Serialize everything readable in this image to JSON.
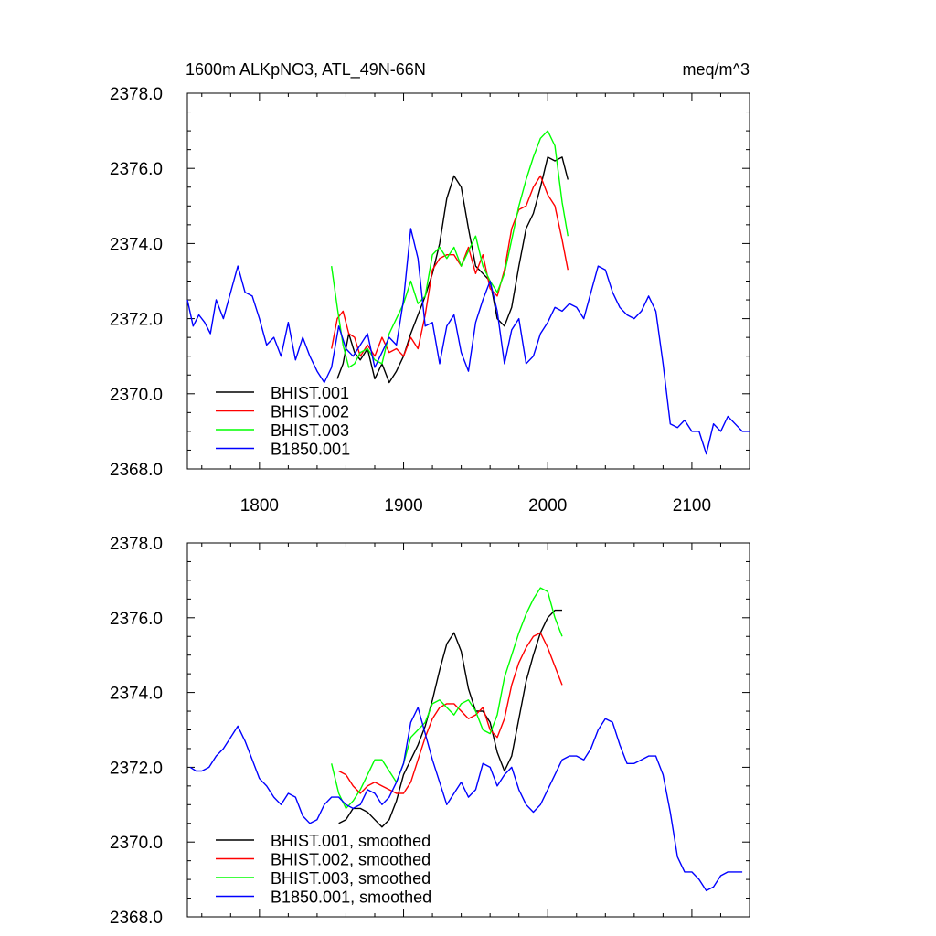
{
  "header": {
    "title_left": "1600m ALKpNO3, ATL_49N-66N",
    "title_right": "meq/m^3"
  },
  "chart_data": [
    {
      "type": "line",
      "panel": "raw",
      "xlim": [
        1750,
        2140
      ],
      "ylim": [
        2368.0,
        2378.0
      ],
      "xticks": [
        1800,
        1900,
        2000,
        2100
      ],
      "xtick_labels": [
        "1800",
        "1900",
        "2000",
        "2100"
      ],
      "yticks": [
        2368.0,
        2370.0,
        2372.0,
        2374.0,
        2376.0,
        2378.0
      ],
      "ytick_labels": [
        "2368.0",
        "2370.0",
        "2372.0",
        "2374.0",
        "2376.0",
        "2378.0"
      ],
      "legend_position": "bottom-left",
      "series": [
        {
          "name": "BHIST.001",
          "color": "#000000",
          "x": [
            1854,
            1858,
            1862,
            1866,
            1870,
            1875,
            1880,
            1885,
            1890,
            1895,
            1900,
            1905,
            1910,
            1915,
            1920,
            1925,
            1930,
            1935,
            1940,
            1945,
            1950,
            1955,
            1960,
            1965,
            1970,
            1975,
            1980,
            1985,
            1990,
            1995,
            2000,
            2005,
            2010,
            2014
          ],
          "y": [
            2370.4,
            2370.8,
            2371.6,
            2371.1,
            2370.9,
            2371.2,
            2370.4,
            2370.8,
            2370.3,
            2370.6,
            2371.0,
            2371.6,
            2372.1,
            2372.6,
            2373.2,
            2374.0,
            2375.2,
            2375.8,
            2375.5,
            2374.4,
            2373.4,
            2373.2,
            2373.0,
            2372.0,
            2371.8,
            2372.3,
            2373.4,
            2374.4,
            2374.8,
            2375.5,
            2376.3,
            2376.2,
            2376.3,
            2375.7
          ]
        },
        {
          "name": "BHIST.002",
          "color": "#ff0000",
          "x": [
            1850,
            1854,
            1858,
            1862,
            1866,
            1870,
            1875,
            1880,
            1885,
            1890,
            1895,
            1900,
            1905,
            1910,
            1915,
            1920,
            1925,
            1930,
            1935,
            1940,
            1945,
            1950,
            1955,
            1960,
            1965,
            1970,
            1975,
            1980,
            1985,
            1990,
            1995,
            2000,
            2005,
            2010,
            2014
          ],
          "y": [
            2371.2,
            2372.0,
            2372.2,
            2371.6,
            2371.5,
            2371.0,
            2371.3,
            2371.0,
            2371.5,
            2371.1,
            2371.2,
            2371.0,
            2371.5,
            2371.2,
            2372.1,
            2373.3,
            2373.6,
            2373.7,
            2373.7,
            2373.4,
            2373.9,
            2373.2,
            2373.7,
            2372.8,
            2372.6,
            2373.3,
            2374.4,
            2374.9,
            2375.0,
            2375.5,
            2375.8,
            2375.3,
            2375.0,
            2374.1,
            2373.3
          ]
        },
        {
          "name": "BHIST.003",
          "color": "#00ff00",
          "x": [
            1850,
            1854,
            1858,
            1862,
            1866,
            1870,
            1875,
            1880,
            1885,
            1890,
            1895,
            1900,
            1905,
            1910,
            1915,
            1920,
            1925,
            1930,
            1935,
            1940,
            1945,
            1950,
            1955,
            1960,
            1965,
            1970,
            1975,
            1980,
            1985,
            1990,
            1995,
            2000,
            2005,
            2010,
            2014
          ],
          "y": [
            2373.4,
            2372.3,
            2371.3,
            2370.7,
            2370.8,
            2371.1,
            2371.2,
            2370.9,
            2370.8,
            2371.6,
            2372.0,
            2372.4,
            2373.0,
            2372.4,
            2372.6,
            2373.7,
            2373.9,
            2373.6,
            2373.9,
            2373.4,
            2373.8,
            2374.2,
            2373.4,
            2373.0,
            2372.7,
            2373.2,
            2374.1,
            2375.0,
            2375.7,
            2376.3,
            2376.8,
            2377.0,
            2376.6,
            2375.1,
            2374.2
          ]
        },
        {
          "name": "B1850.001",
          "color": "#0000ff",
          "x": [
            1750,
            1754,
            1758,
            1762,
            1766,
            1770,
            1775,
            1780,
            1785,
            1790,
            1795,
            1800,
            1805,
            1810,
            1815,
            1820,
            1825,
            1830,
            1835,
            1840,
            1845,
            1850,
            1855,
            1860,
            1865,
            1870,
            1875,
            1880,
            1885,
            1890,
            1895,
            1900,
            1905,
            1910,
            1915,
            1920,
            1925,
            1930,
            1935,
            1940,
            1945,
            1950,
            1955,
            1960,
            1965,
            1970,
            1975,
            1980,
            1985,
            1990,
            1995,
            2000,
            2005,
            2010,
            2015,
            2020,
            2025,
            2030,
            2035,
            2040,
            2045,
            2050,
            2055,
            2060,
            2065,
            2070,
            2075,
            2080,
            2085,
            2090,
            2095,
            2100,
            2105,
            2110,
            2115,
            2120,
            2125,
            2130,
            2135,
            2140
          ],
          "y": [
            2372.5,
            2371.8,
            2372.1,
            2371.9,
            2371.6,
            2372.5,
            2372.0,
            2372.7,
            2373.4,
            2372.7,
            2372.6,
            2372.0,
            2371.3,
            2371.5,
            2371.0,
            2371.9,
            2370.9,
            2371.5,
            2371.0,
            2370.6,
            2370.3,
            2370.7,
            2371.8,
            2371.2,
            2371.0,
            2371.3,
            2371.6,
            2370.7,
            2371.1,
            2371.5,
            2371.3,
            2372.5,
            2374.4,
            2373.6,
            2371.8,
            2371.9,
            2370.8,
            2371.8,
            2372.1,
            2371.1,
            2370.6,
            2371.9,
            2372.5,
            2373.0,
            2372.2,
            2370.8,
            2371.7,
            2372.0,
            2370.8,
            2371.0,
            2371.6,
            2371.9,
            2372.3,
            2372.2,
            2372.4,
            2372.3,
            2372.0,
            2372.7,
            2373.4,
            2373.3,
            2372.7,
            2372.3,
            2372.1,
            2372.0,
            2372.2,
            2372.6,
            2372.2,
            2370.8,
            2369.2,
            2369.1,
            2369.3,
            2369.0,
            2369.0,
            2368.4,
            2369.2,
            2369.0,
            2369.4,
            2369.2,
            2369.0,
            2369.0
          ]
        }
      ]
    },
    {
      "type": "line",
      "panel": "smoothed",
      "xlim": [
        1750,
        2140
      ],
      "ylim": [
        2368.0,
        2378.0
      ],
      "yticks": [
        2368.0,
        2370.0,
        2372.0,
        2374.0,
        2376.0,
        2378.0
      ],
      "ytick_labels": [
        "2368.0",
        "2370.0",
        "2372.0",
        "2374.0",
        "2376.0",
        "2378.0"
      ],
      "legend_position": "bottom-left",
      "series": [
        {
          "name": "BHIST.001, smoothed",
          "color": "#000000",
          "x": [
            1855,
            1860,
            1865,
            1870,
            1875,
            1880,
            1885,
            1890,
            1895,
            1900,
            1905,
            1910,
            1915,
            1920,
            1925,
            1930,
            1935,
            1940,
            1945,
            1950,
            1955,
            1960,
            1965,
            1970,
            1975,
            1980,
            1985,
            1990,
            1995,
            2000,
            2005,
            2010
          ],
          "y": [
            2370.5,
            2370.6,
            2370.9,
            2370.9,
            2370.8,
            2370.6,
            2370.4,
            2370.6,
            2371.1,
            2371.8,
            2372.2,
            2372.6,
            2373.1,
            2373.8,
            2374.6,
            2375.3,
            2375.6,
            2375.1,
            2374.1,
            2373.5,
            2373.5,
            2373.2,
            2372.4,
            2371.9,
            2372.3,
            2373.3,
            2374.3,
            2375.0,
            2375.6,
            2376.0,
            2376.2,
            2376.2
          ]
        },
        {
          "name": "BHIST.002, smoothed",
          "color": "#ff0000",
          "x": [
            1855,
            1860,
            1865,
            1870,
            1875,
            1880,
            1885,
            1890,
            1895,
            1900,
            1905,
            1910,
            1915,
            1920,
            1925,
            1930,
            1935,
            1940,
            1945,
            1950,
            1955,
            1960,
            1965,
            1970,
            1975,
            1980,
            1985,
            1990,
            1995,
            2000,
            2005,
            2010
          ],
          "y": [
            2371.9,
            2371.8,
            2371.5,
            2371.3,
            2371.5,
            2371.6,
            2371.5,
            2371.4,
            2371.3,
            2371.3,
            2371.6,
            2372.2,
            2372.8,
            2373.3,
            2373.6,
            2373.7,
            2373.7,
            2373.5,
            2373.3,
            2373.4,
            2373.6,
            2373.0,
            2372.8,
            2373.3,
            2374.2,
            2374.8,
            2375.2,
            2375.5,
            2375.6,
            2375.2,
            2374.7,
            2374.2
          ]
        },
        {
          "name": "BHIST.003, smoothed",
          "color": "#00ff00",
          "x": [
            1850,
            1855,
            1860,
            1865,
            1870,
            1875,
            1880,
            1885,
            1890,
            1895,
            1900,
            1905,
            1910,
            1915,
            1920,
            1925,
            1930,
            1935,
            1940,
            1945,
            1950,
            1955,
            1960,
            1965,
            1970,
            1975,
            1980,
            1985,
            1990,
            1995,
            2000,
            2005,
            2010
          ],
          "y": [
            2372.1,
            2371.3,
            2370.9,
            2371.1,
            2371.4,
            2371.8,
            2372.2,
            2372.2,
            2371.9,
            2371.6,
            2372.1,
            2372.8,
            2373.0,
            2373.2,
            2373.7,
            2373.8,
            2373.6,
            2373.4,
            2373.7,
            2373.8,
            2373.5,
            2373.0,
            2372.9,
            2373.4,
            2374.4,
            2375.0,
            2375.6,
            2376.1,
            2376.5,
            2376.8,
            2376.7,
            2376.0,
            2375.5
          ]
        },
        {
          "name": "B1850.001, smoothed",
          "color": "#0000ff",
          "x": [
            1752,
            1756,
            1760,
            1765,
            1770,
            1775,
            1780,
            1785,
            1790,
            1795,
            1800,
            1805,
            1810,
            1815,
            1820,
            1825,
            1830,
            1835,
            1840,
            1845,
            1850,
            1855,
            1860,
            1865,
            1870,
            1875,
            1880,
            1885,
            1890,
            1895,
            1900,
            1905,
            1910,
            1915,
            1920,
            1925,
            1930,
            1935,
            1940,
            1945,
            1950,
            1955,
            1960,
            1965,
            1970,
            1975,
            1980,
            1985,
            1990,
            1995,
            2000,
            2005,
            2010,
            2015,
            2020,
            2025,
            2030,
            2035,
            2040,
            2045,
            2050,
            2055,
            2060,
            2065,
            2070,
            2075,
            2080,
            2085,
            2090,
            2095,
            2100,
            2105,
            2110,
            2115,
            2120,
            2125,
            2130,
            2135
          ],
          "y": [
            2372.0,
            2371.9,
            2371.9,
            2372.0,
            2372.3,
            2372.5,
            2372.8,
            2373.1,
            2372.7,
            2372.2,
            2371.7,
            2371.5,
            2371.2,
            2371.0,
            2371.3,
            2371.2,
            2370.7,
            2370.5,
            2370.6,
            2371.0,
            2371.2,
            2371.2,
            2371.0,
            2370.9,
            2371.0,
            2371.4,
            2371.3,
            2371.0,
            2371.2,
            2371.6,
            2372.1,
            2373.2,
            2373.6,
            2372.9,
            2372.2,
            2371.6,
            2371.0,
            2371.3,
            2371.6,
            2371.2,
            2371.4,
            2372.1,
            2372.0,
            2371.5,
            2371.8,
            2372.0,
            2371.4,
            2371.0,
            2370.8,
            2371.0,
            2371.4,
            2371.8,
            2372.2,
            2372.3,
            2372.3,
            2372.2,
            2372.5,
            2373.0,
            2373.3,
            2373.2,
            2372.6,
            2372.1,
            2372.1,
            2372.2,
            2372.3,
            2372.3,
            2371.8,
            2370.8,
            2369.6,
            2369.2,
            2369.2,
            2369.0,
            2368.7,
            2368.8,
            2369.1,
            2369.2,
            2369.2,
            2369.2
          ]
        }
      ]
    }
  ]
}
